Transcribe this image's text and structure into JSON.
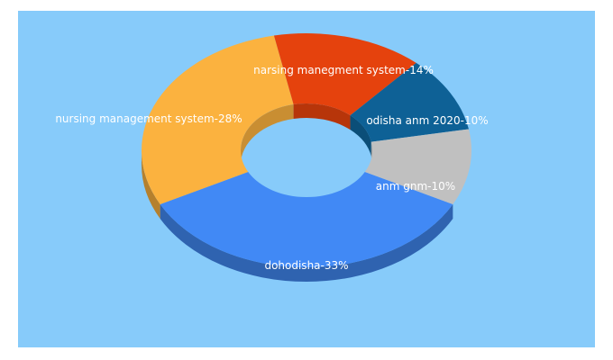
{
  "chart_data": {
    "type": "pie",
    "variant": "3d-donut",
    "title": "",
    "slices": [
      {
        "label": "dohodisha-33%",
        "value": 33,
        "color": "#4189f5"
      },
      {
        "label": "nursing management system-28%",
        "value": 28,
        "color": "#fbb23f"
      },
      {
        "label": "narsing manegment system-14%",
        "value": 14,
        "color": "#e5420d"
      },
      {
        "label": "odisha anm 2020-10%",
        "value": 10,
        "color": "#0e6196"
      },
      {
        "label": "anm gnm-10%",
        "value": 10,
        "color": "#c0c0c0"
      }
    ],
    "colors": {
      "background": "#87cbfa"
    }
  }
}
